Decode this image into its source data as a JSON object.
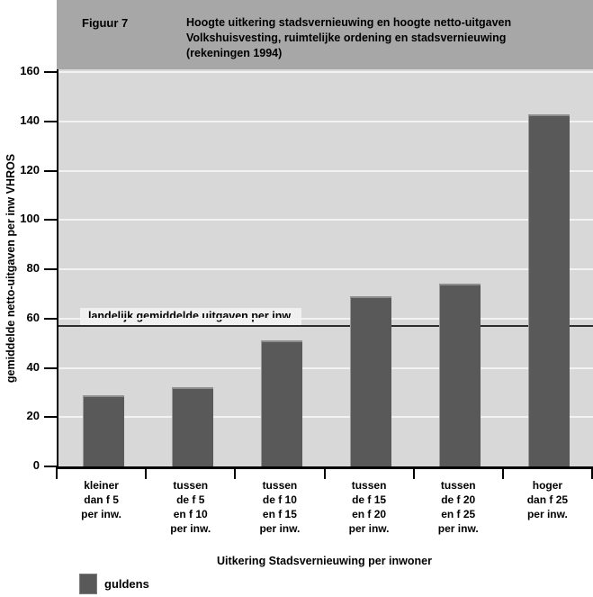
{
  "figure": {
    "label": "Figuur 7",
    "title": "Hoogte uitkering stadsvernieuwing en hoogte netto-uitgaven\nVolkshuisvesting, ruimtelijke ordening en stadsvernieuwing\n(rekeningen 1994)"
  },
  "chart_data": {
    "type": "bar",
    "title": "Hoogte uitkering stadsvernieuwing en hoogte netto-uitgaven Volkshuisvesting, ruimtelijke ordening en stadsvernieuwing (rekeningen 1994)",
    "categories": [
      "kleiner\ndan f 5\nper inw.",
      "tussen\nde f 5\nen f 10\nper inw.",
      "tussen\nde f 10\nen f 15\nper inw.",
      "tussen\nde f 15\nen f 20\nper inw.",
      "tussen\nde f 20\nen f 25\nper inw.",
      "hoger\ndan f 25\nper inw."
    ],
    "values": [
      29,
      32,
      51,
      69,
      74,
      143
    ],
    "series_name": "guldens",
    "xlabel": "Uitkering Stadsvernieuwing per inwoner",
    "ylabel": "gemiddelde netto-uitgaven per inw VHROS",
    "ylim": [
      0,
      160
    ],
    "ytick_step": 20,
    "grid": true,
    "legend_position": "bottom-left",
    "reference_line": {
      "value": 57,
      "label": "landelijk gemiddelde uitgaven per inw."
    }
  },
  "legend": {
    "label": "guldens"
  },
  "colors": {
    "header_band": "#a7a7a7",
    "plot_background": "#d8d8d8",
    "bar_fill": "#595959",
    "gridline": "#f2f2f2",
    "reference_line": "#2e2e2e",
    "reference_label_background": "#f0f0f0",
    "axis": "#000000"
  }
}
